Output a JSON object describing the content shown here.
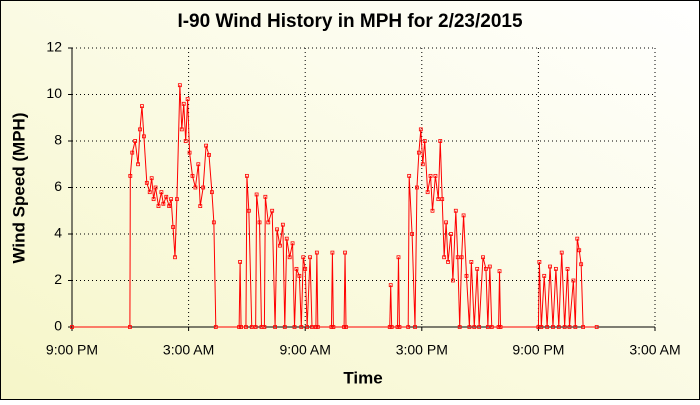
{
  "chart_data": {
    "type": "line",
    "title": "I-90 Wind History in MPH for 2/23/2015",
    "xlabel": "Time",
    "ylabel": "Wind Speed (MPH)",
    "color": "#ff0000",
    "grid": true,
    "markers": true,
    "xlim": [
      0,
      30
    ],
    "xticks": [
      {
        "value": 0,
        "label": "9:00 PM"
      },
      {
        "value": 6,
        "label": "3:00 AM"
      },
      {
        "value": 12,
        "label": "9:00 AM"
      },
      {
        "value": 18,
        "label": "3:00 PM"
      },
      {
        "value": 24,
        "label": "9:00 PM"
      },
      {
        "value": 30,
        "label": "3:00 AM"
      }
    ],
    "ylim": [
      0,
      12
    ],
    "yticks": [
      0,
      2,
      4,
      6,
      8,
      10,
      12
    ],
    "x": [
      0,
      2.98,
      3.0,
      3.1,
      3.25,
      3.4,
      3.5,
      3.6,
      3.7,
      3.85,
      4.0,
      4.1,
      4.2,
      4.3,
      4.45,
      4.6,
      4.7,
      4.85,
      5.0,
      5.1,
      5.2,
      5.3,
      5.4,
      5.55,
      5.65,
      5.75,
      5.85,
      5.95,
      6.05,
      6.2,
      6.35,
      6.5,
      6.6,
      6.75,
      6.9,
      7.05,
      7.2,
      7.3,
      7.4,
      8.6,
      8.65,
      8.7,
      8.95,
      9.0,
      9.1,
      9.25,
      9.45,
      9.5,
      9.65,
      9.75,
      9.9,
      9.95,
      10.1,
      10.3,
      10.45,
      10.55,
      10.7,
      10.85,
      10.95,
      11.05,
      11.2,
      11.35,
      11.45,
      11.55,
      11.7,
      11.8,
      11.9,
      12.0,
      12.1,
      12.25,
      12.35,
      12.55,
      12.6,
      12.65,
      13.35,
      13.4,
      13.45,
      14.0,
      14.05,
      14.1,
      16.35,
      16.4,
      16.45,
      16.75,
      16.8,
      16.85,
      17.3,
      17.35,
      17.5,
      17.65,
      17.75,
      17.85,
      17.95,
      18.05,
      18.15,
      18.3,
      18.45,
      18.55,
      18.7,
      18.85,
      18.95,
      19.05,
      19.15,
      19.25,
      19.35,
      19.5,
      19.6,
      19.75,
      19.85,
      19.95,
      20.05,
      20.15,
      20.3,
      20.45,
      20.55,
      20.7,
      20.85,
      20.95,
      21.15,
      21.3,
      21.4,
      21.5,
      21.6,
      21.95,
      22.0,
      22.05,
      24.0,
      24.05,
      24.15,
      24.3,
      24.45,
      24.6,
      24.75,
      24.9,
      25.05,
      25.2,
      25.35,
      25.5,
      25.6,
      25.8,
      25.9,
      26.0,
      26.1,
      26.2,
      26.3,
      27.0
    ],
    "values": [
      0,
      0,
      6.5,
      7.5,
      8,
      7,
      8.5,
      9.5,
      8.2,
      6.2,
      5.8,
      6.4,
      5.5,
      6,
      5.2,
      5.8,
      5.3,
      5.6,
      5.2,
      5.5,
      4.3,
      3,
      5.5,
      10.4,
      8.5,
      9.6,
      8,
      9.8,
      7.5,
      6.5,
      6,
      7,
      5.2,
      6,
      7.8,
      7.4,
      5.8,
      4.5,
      0,
      0,
      2.8,
      0,
      0,
      6.5,
      5,
      0,
      0,
      5.7,
      4.5,
      0,
      0,
      5.6,
      4.5,
      5,
      0,
      4.2,
      3.5,
      4.4,
      0,
      3.8,
      3,
      3.6,
      0,
      2.5,
      2.2,
      0,
      3,
      2.5,
      0,
      3,
      0,
      0,
      3.2,
      0,
      0,
      3.2,
      0,
      0,
      3.2,
      0,
      0,
      1.8,
      0,
      0,
      3,
      0,
      0,
      6.5,
      4,
      0,
      6,
      7.5,
      8.5,
      7,
      8,
      5.8,
      6.5,
      5,
      6.5,
      5.5,
      8,
      5.5,
      3,
      4.5,
      2.8,
      4,
      2,
      5,
      3,
      0,
      3,
      4.8,
      2.2,
      0,
      2.8,
      0,
      2.5,
      0,
      3,
      2.5,
      0,
      2.6,
      0,
      0,
      2.4,
      0,
      0,
      2.8,
      0,
      2.2,
      0,
      2.6,
      0,
      2.5,
      0,
      3.2,
      0,
      2.5,
      0,
      2,
      0,
      3.8,
      3.3,
      2.7,
      0,
      0
    ]
  }
}
